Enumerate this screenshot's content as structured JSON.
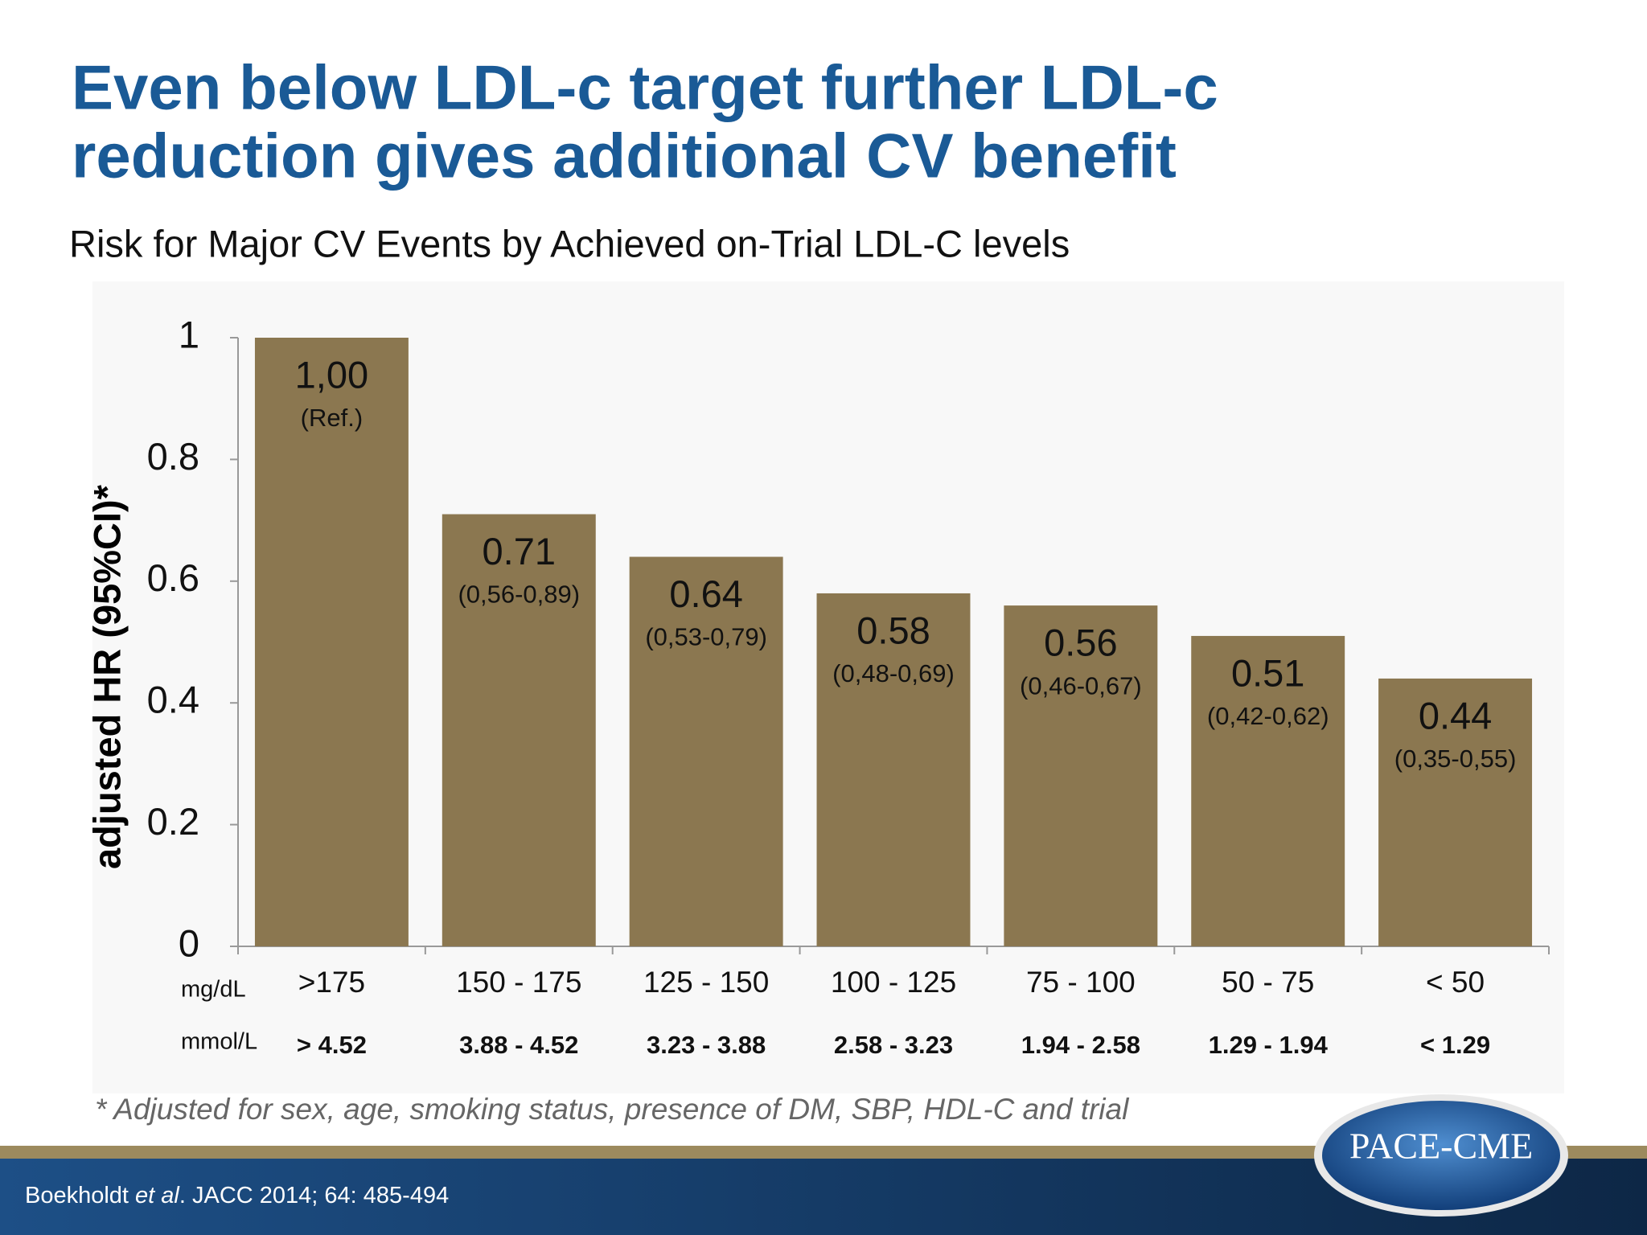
{
  "heading": [
    "Even below LDL-c target further LDL-c",
    "reduction gives additional CV benefit"
  ],
  "chart_data": {
    "type": "bar",
    "title": "Risk for Major CV Events by Achieved on-Trial LDL-C levels",
    "y_label": "adjusted HR (95%CI)*",
    "categories": [
      ">175",
      "150 - 175",
      "125 - 150",
      "100 - 125",
      "75 - 100",
      "50 - 75",
      "< 50"
    ],
    "category_unit": "mg/dL",
    "categories_mmol": [
      "> 4.52",
      "3.88 - 4.52",
      "3.23 - 3.88",
      "2.58 - 3.23",
      "1.94 - 2.58",
      "1.29 - 1.94",
      "< 1.29"
    ],
    "category_mmol_unit": "mmol/L",
    "values": [
      1,
      0.71,
      0.64,
      0.58,
      0.56,
      0.51,
      0.44
    ],
    "value_labels": [
      "1,00",
      "0.71",
      "0.64",
      "0.58",
      "0.56",
      "0.51",
      "0.44"
    ],
    "ci_labels": [
      "(Ref.)",
      "(0,56-0,89)",
      "(0,53-0,79)",
      "(0,48-0,69)",
      "(0,46-0,67)",
      "(0,42-0,62)",
      "(0,35-0,55)"
    ],
    "color": "#8b7750",
    "ylim": [
      0,
      1
    ],
    "yticks": [
      0,
      0.2,
      0.4,
      0.6,
      0.8,
      1
    ]
  },
  "footnote": "* Adjusted for sex, age, smoking status, presence of DM, SBP, HDL-C and trial",
  "citation": [
    "Boekholdt ",
    "et al",
    ". JACC 2014; 64: 485-494"
  ],
  "logo": "PACE-CME"
}
